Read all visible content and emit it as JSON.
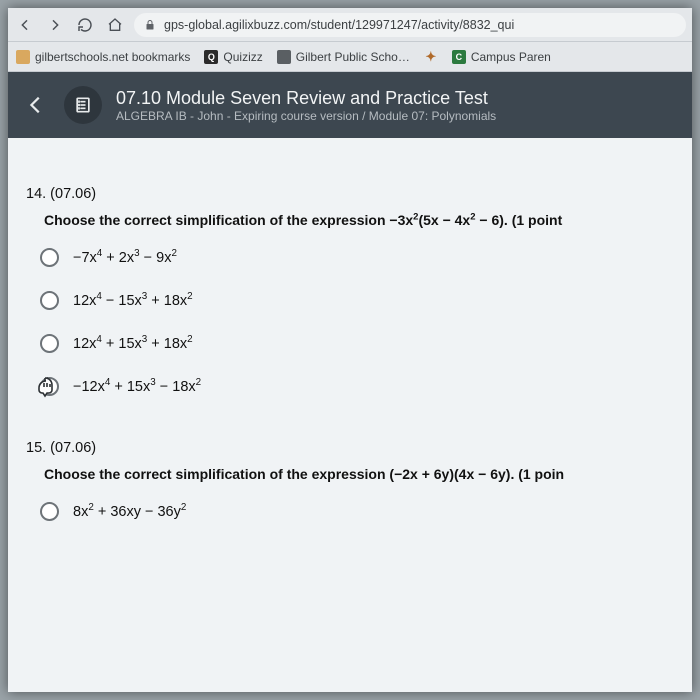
{
  "browser": {
    "url": "gps-global.agilixbuzz.com/student/129971247/activity/8832_qui",
    "bookmarks": [
      {
        "label": "gilbertschools.net bookmarks",
        "favicon_bg": "#d9a85f",
        "favicon_text": ""
      },
      {
        "label": "Quizizz",
        "favicon_bg": "#2b2b2b",
        "favicon_text": "Q"
      },
      {
        "label": "Gilbert Public Scho…",
        "favicon_bg": "#5a5f63",
        "favicon_text": ""
      },
      {
        "label": "",
        "favicon_bg": "transparent",
        "favicon_text": "✦"
      },
      {
        "label": "Campus Paren",
        "favicon_bg": "#2b7a3f",
        "favicon_text": "C"
      }
    ]
  },
  "module": {
    "title": "07.10 Module Seven Review and Practice Test",
    "subtitle": "ALGEBRA IB - John - Expiring course version / Module 07: Polynomials"
  },
  "q14": {
    "number": "14. (07.06)",
    "prompt_prefix": "Choose the correct simplification of the expression ",
    "prompt_expr": "−3x²(5x − 4x² − 6)",
    "prompt_suffix": ". (1 point",
    "options": [
      {
        "expr": "−7x⁴ + 2x³ − 9x²",
        "hover": false
      },
      {
        "expr": "12x⁴ − 15x³ + 18x²",
        "hover": false
      },
      {
        "expr": "12x⁴ + 15x³ + 18x²",
        "hover": false
      },
      {
        "expr": "−12x⁴ + 15x³ − 18x²",
        "hover": true
      }
    ]
  },
  "q15": {
    "number": "15. (07.06)",
    "prompt_prefix": "Choose the correct simplification of the expression ",
    "prompt_expr": "(−2x + 6y)(4x − 6y)",
    "prompt_suffix": ". (1 poin",
    "options": [
      {
        "expr": "8x² + 36xy − 36y²",
        "hover": false
      }
    ]
  },
  "colors": {
    "module_header_bg": "#3d4750",
    "content_bg": "#f0f3f5",
    "chrome_bg": "#e4e7ea"
  }
}
